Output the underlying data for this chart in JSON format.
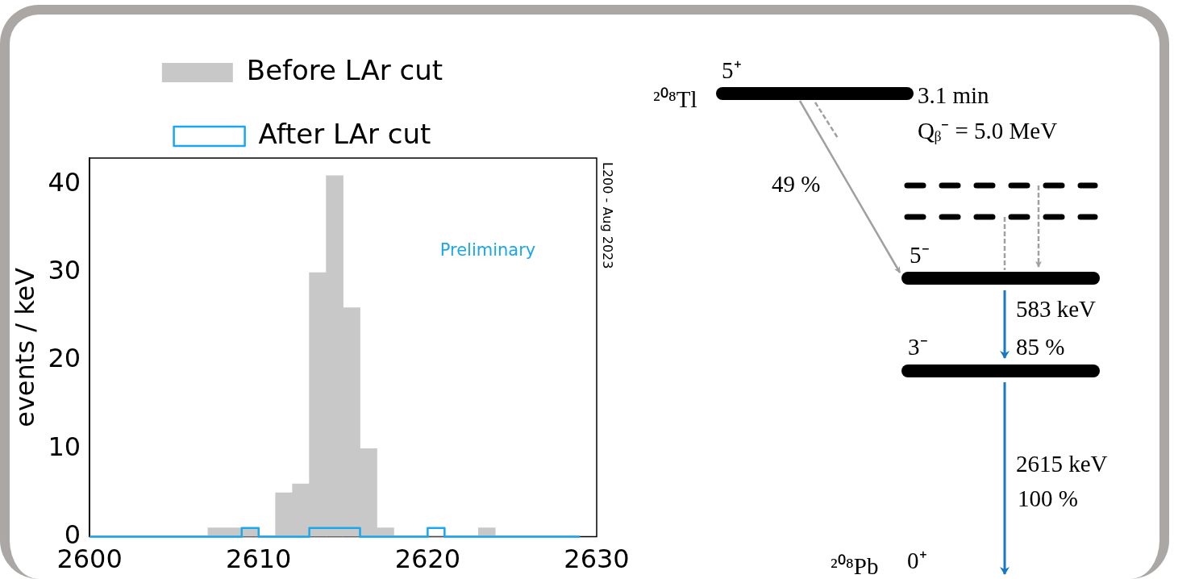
{
  "chart_data": {
    "type": "histogram",
    "ylabel": "events / keV",
    "bins": [
      2600,
      2601,
      2602,
      2603,
      2604,
      2605,
      2606,
      2607,
      2608,
      2609,
      2610,
      2611,
      2612,
      2613,
      2614,
      2615,
      2616,
      2617,
      2618,
      2619,
      2620,
      2621,
      2622,
      2623,
      2624,
      2625,
      2626,
      2627,
      2628,
      2629
    ],
    "series": [
      {
        "name": "Before LAr cut",
        "color": "#c8c8c8",
        "values": [
          0,
          0,
          0,
          0,
          0,
          0,
          0,
          1,
          1,
          1,
          0,
          5,
          6,
          30,
          41,
          26,
          10,
          1,
          0,
          0,
          0,
          0,
          0,
          1,
          0,
          0,
          0,
          0,
          0
        ]
      },
      {
        "name": "After LAr cut",
        "color": "#1aa7ec",
        "type": "step",
        "x": [
          2600,
          2601,
          2602,
          2603,
          2604,
          2605,
          2606,
          2607,
          2608,
          2609,
          2610,
          2611,
          2612,
          2613,
          2614,
          2615,
          2616,
          2617,
          2618,
          2619,
          2620,
          2621,
          2622,
          2623,
          2624,
          2625,
          2626,
          2627,
          2628,
          2629
        ],
        "values": [
          0,
          0,
          0,
          0,
          0,
          0,
          0,
          0,
          0,
          1,
          0,
          0,
          0,
          1,
          1,
          1,
          0,
          0,
          0,
          0,
          1,
          0,
          0,
          0,
          0,
          0,
          0,
          0,
          0,
          0
        ]
      }
    ],
    "xlim": [
      2600,
      2630
    ],
    "xticks": [
      2600,
      2610,
      2620,
      2630
    ],
    "ylim": [
      0,
      43
    ],
    "yticks": [
      0,
      10,
      20,
      30,
      40
    ],
    "grid": false,
    "legend": "top",
    "marker": "none",
    "annotations": [
      "Preliminary",
      "L200 - Aug 2023",
      "5⁺",
      "²⁰⁸Tl",
      "3.1 min",
      "Qᵦ⁻ = 5.0 MeV",
      "49 %",
      "5⁻",
      "583 keV",
      "85 %",
      "3⁻",
      "2615 keV",
      "100 %",
      "0⁺",
      "²⁰⁸Pb"
    ]
  }
}
